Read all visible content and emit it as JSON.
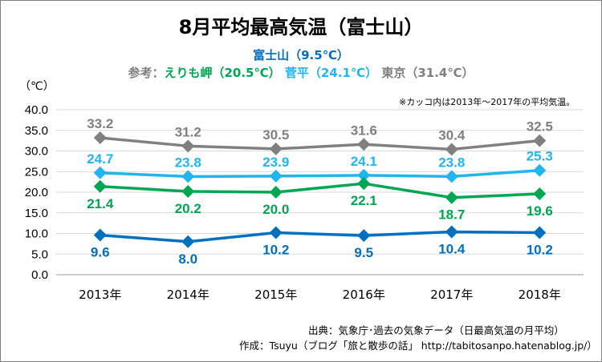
{
  "chart_data": {
    "type": "line",
    "title": "8月平均最高気温（富士山）",
    "subtitle_main": "富士山（9.5℃）",
    "subtitle_ref": {
      "prefix": "参考：",
      "items": [
        {
          "text": "えりも岬（20.5℃）",
          "color": "#00a651"
        },
        {
          "text": "菅平（24.1℃）",
          "color": "#1fb6f0"
        },
        {
          "text": "東京（31.4℃）",
          "color": "#808080"
        }
      ]
    },
    "unit_label": "（℃）",
    "note": "※カッコ内は2013年～2017年の平均気温。",
    "categories": [
      "2013年",
      "2014年",
      "2015年",
      "2016年",
      "2017年",
      "2018年"
    ],
    "yticks": [
      "40.0",
      "35.0",
      "30.0",
      "25.0",
      "20.0",
      "15.0",
      "10.0",
      "5.0",
      "0.0"
    ],
    "ylim": [
      0,
      40
    ],
    "grid": true,
    "series": [
      {
        "values": [
          33.2,
          31.2,
          30.5,
          31.6,
          30.4,
          32.5
        ],
        "labels": [
          "33.2",
          "31.2",
          "30.5",
          "31.6",
          "30.4",
          "32.5"
        ],
        "color": "#808080",
        "label_pos": "above"
      },
      {
        "values": [
          24.7,
          23.8,
          23.9,
          24.1,
          23.8,
          25.3
        ],
        "labels": [
          "24.7",
          "23.8",
          "23.9",
          "24.1",
          "23.8",
          "25.3"
        ],
        "color": "#1fb6f0",
        "label_pos": "above"
      },
      {
        "values": [
          21.4,
          20.2,
          20.0,
          22.1,
          18.7,
          19.6
        ],
        "labels": [
          "21.4",
          "20.2",
          "20.0",
          "22.1",
          "18.7",
          "19.6"
        ],
        "color": "#00a651",
        "label_pos": "below"
      },
      {
        "values": [
          9.6,
          8.0,
          10.2,
          9.5,
          10.4,
          10.2
        ],
        "labels": [
          "9.6",
          "8.0",
          "10.2",
          "9.5",
          "10.4",
          "10.2"
        ],
        "color": "#0070c0",
        "label_pos": "below"
      }
    ]
  },
  "footer": {
    "source": "出典：気象庁･過去の気象データ（日最高気温の月平均）",
    "credit": "作成：Tsuyu（ブログ「旅と散歩の話」 http://tabitosanpo.hatenablog.jp/）"
  }
}
